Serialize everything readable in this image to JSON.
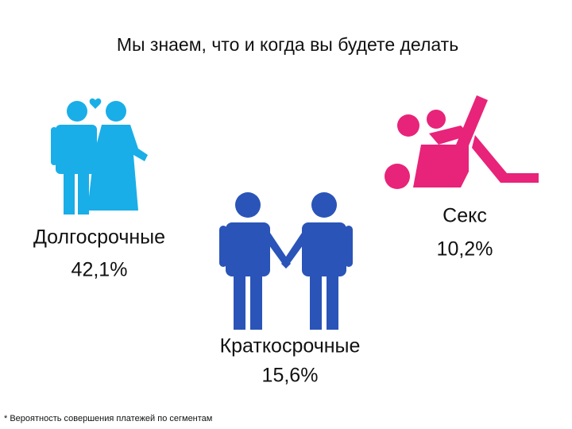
{
  "title": "Мы знаем, что и когда вы будете делать",
  "segments": [
    {
      "label": "Долгосрочные",
      "value": "42,1%"
    },
    {
      "label": "Краткосрочные",
      "value": "15,6%"
    },
    {
      "label": "Секс",
      "value": "10,2%"
    }
  ],
  "footnote": "* Вероятность совершения платежей по сегментам"
}
